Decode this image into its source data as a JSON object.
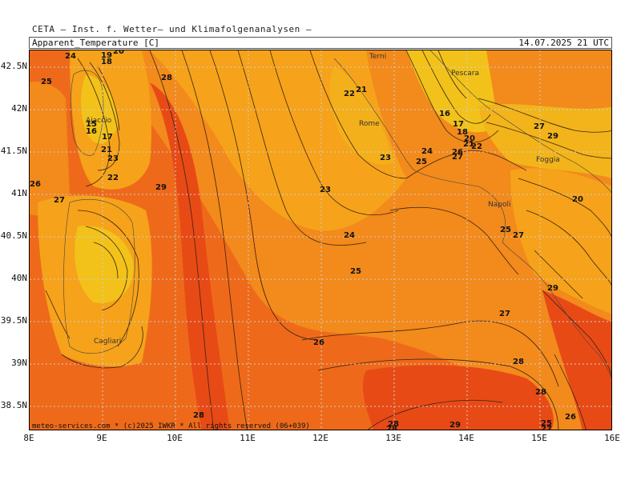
{
  "header": {
    "source": "CETA — Inst. f. Wetter— und Klimafolgenanalysen —",
    "parameter": "Apparent_Temperature [C]",
    "valid_time": "14.07.2025  21 UTC"
  },
  "credit": "meteo-services.com * (c)2025 IWKR * All rights reserved (06+039)",
  "axes": {
    "lon_labels": [
      "8E",
      "9E",
      "10E",
      "11E",
      "12E",
      "13E",
      "14E",
      "15E",
      "16E"
    ],
    "lat_labels": [
      "42.5N",
      "42N",
      "41.5N",
      "41N",
      "40.5N",
      "40N",
      "39.5N",
      "39N",
      "38.5N"
    ]
  },
  "cities": [
    {
      "name": "Terni"
    },
    {
      "name": "Pescara"
    },
    {
      "name": "Rome"
    },
    {
      "name": "Ajaccio"
    },
    {
      "name": "Foggia"
    },
    {
      "name": "Napoli"
    },
    {
      "name": "Cagliari"
    }
  ],
  "contour_labels": [
    {
      "text": "24"
    },
    {
      "text": "19"
    },
    {
      "text": "18"
    },
    {
      "text": "20"
    },
    {
      "text": "25"
    },
    {
      "text": "28"
    },
    {
      "text": "15"
    },
    {
      "text": "16"
    },
    {
      "text": "17"
    },
    {
      "text": "21"
    },
    {
      "text": "23"
    },
    {
      "text": "22"
    },
    {
      "text": "26"
    },
    {
      "text": "27"
    },
    {
      "text": "29"
    },
    {
      "text": "23"
    },
    {
      "text": "24"
    },
    {
      "text": "25"
    },
    {
      "text": "26"
    },
    {
      "text": "27"
    },
    {
      "text": "28"
    },
    {
      "text": "29"
    },
    {
      "text": "22"
    },
    {
      "text": "21"
    },
    {
      "text": "23"
    },
    {
      "text": "16"
    },
    {
      "text": "17"
    },
    {
      "text": "18"
    },
    {
      "text": "20"
    },
    {
      "text": "21"
    },
    {
      "text": "22"
    },
    {
      "text": "24"
    },
    {
      "text": "25"
    },
    {
      "text": "26"
    },
    {
      "text": "27"
    },
    {
      "text": "20"
    },
    {
      "text": "25"
    },
    {
      "text": "27"
    },
    {
      "text": "28"
    },
    {
      "text": "29"
    },
    {
      "text": "27"
    },
    {
      "text": "28"
    },
    {
      "text": "28"
    },
    {
      "text": "25"
    },
    {
      "text": "26"
    },
    {
      "text": "27"
    },
    {
      "text": "28"
    },
    {
      "text": "29"
    }
  ],
  "colors": {
    "yellow": "#f2c21a",
    "light_orange": "#f6a21a",
    "orange": "#f28a1c",
    "dark_orange": "#ee6a1a",
    "red_orange": "#e84a16"
  }
}
